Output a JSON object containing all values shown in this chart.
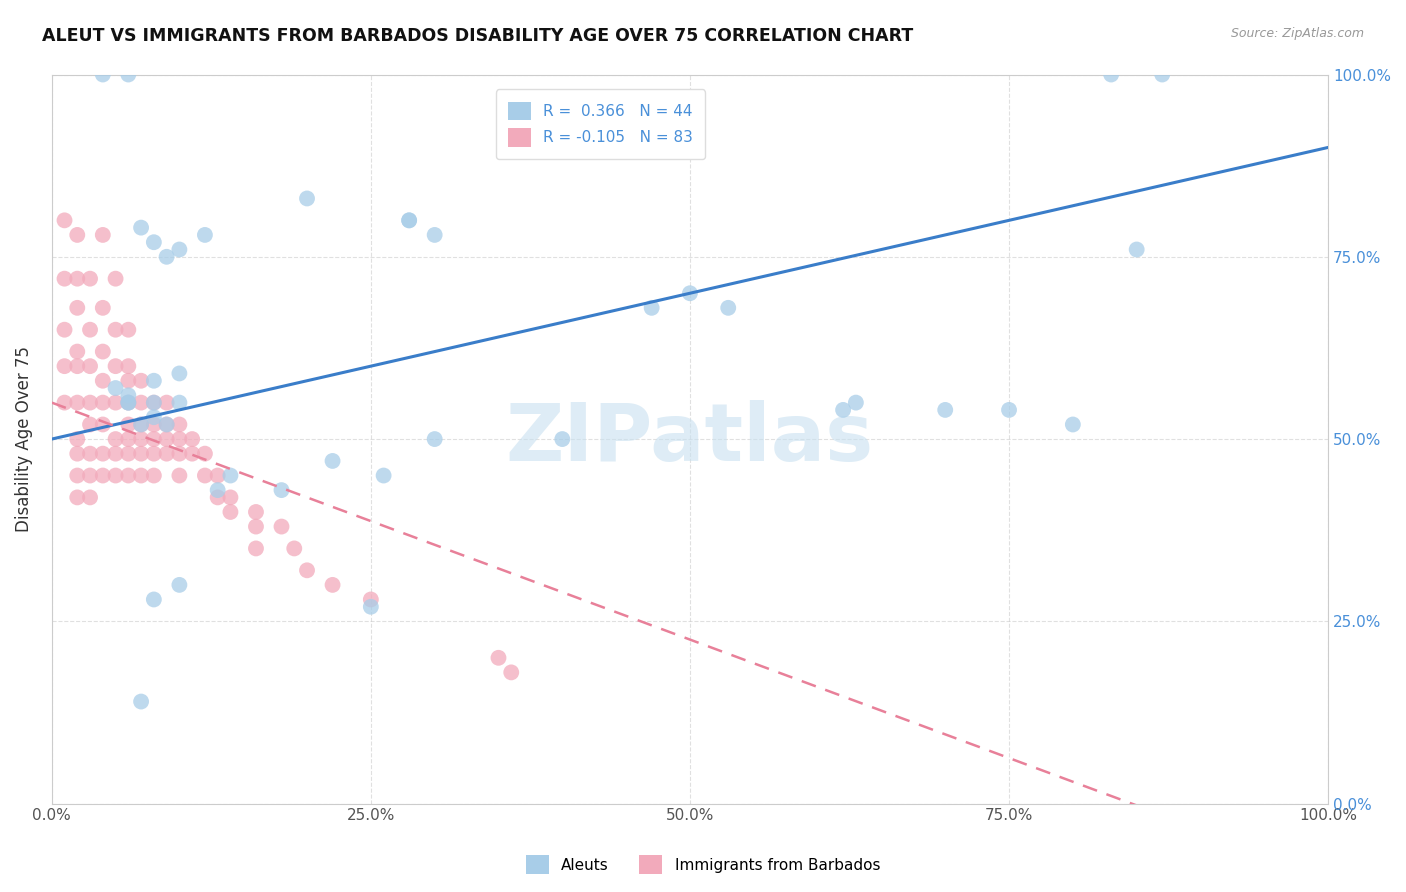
{
  "title": "ALEUT VS IMMIGRANTS FROM BARBADOS DISABILITY AGE OVER 75 CORRELATION CHART",
  "source": "Source: ZipAtlas.com",
  "ylabel": "Disability Age Over 75",
  "legend_labels": [
    "Aleuts",
    "Immigrants from Barbados"
  ],
  "R_aleut": 0.366,
  "N_aleut": 44,
  "R_barbados": -0.105,
  "N_barbados": 83,
  "aleut_color": "#A8CDE8",
  "barbados_color": "#F2AABB",
  "trendline_aleut_color": "#3A7DC9",
  "trendline_barbados_color": "#E88099",
  "background_color": "#FFFFFF",
  "watermark_text": "ZIPatlas",
  "watermark_color": "#C8E0F0",
  "xlim": [
    0.0,
    1.0
  ],
  "ylim": [
    0.0,
    1.0
  ],
  "xticks": [
    0.0,
    0.25,
    0.5,
    0.75,
    1.0
  ],
  "yticks": [
    0.0,
    0.25,
    0.5,
    0.75,
    1.0
  ],
  "xticklabels": [
    "0.0%",
    "25.0%",
    "50.0%",
    "75.0%",
    "100.0%"
  ],
  "yticklabels_right": [
    "0.0%",
    "25.0%",
    "50.0%",
    "75.0%",
    "100.0%"
  ],
  "tick_color": "#4A90D9",
  "grid_color": "#CCCCCC",
  "aleut_x": [
    0.2,
    0.28,
    0.04,
    0.06,
    0.08,
    0.1,
    0.12,
    0.07,
    0.09,
    0.06,
    0.08,
    0.1,
    0.28,
    0.3,
    0.47,
    0.5,
    0.63,
    0.75,
    0.8,
    0.83,
    0.85,
    0.87,
    0.62,
    0.7,
    0.53,
    0.4,
    0.3,
    0.22,
    0.14,
    0.07,
    0.06,
    0.08,
    0.09,
    0.25,
    0.26,
    0.18,
    0.13,
    0.1,
    0.08,
    0.07,
    0.06,
    0.05,
    0.08,
    0.1
  ],
  "aleut_y": [
    0.83,
    0.8,
    1.0,
    1.0,
    0.77,
    0.76,
    0.78,
    0.79,
    0.75,
    0.55,
    0.55,
    0.55,
    0.8,
    0.78,
    0.68,
    0.7,
    0.55,
    0.54,
    0.52,
    1.0,
    0.76,
    1.0,
    0.54,
    0.54,
    0.68,
    0.5,
    0.5,
    0.47,
    0.45,
    0.52,
    0.55,
    0.53,
    0.52,
    0.27,
    0.45,
    0.43,
    0.43,
    0.3,
    0.28,
    0.14,
    0.56,
    0.57,
    0.58,
    0.59
  ],
  "barbados_x": [
    0.01,
    0.01,
    0.01,
    0.01,
    0.01,
    0.02,
    0.02,
    0.02,
    0.02,
    0.02,
    0.02,
    0.02,
    0.02,
    0.02,
    0.02,
    0.03,
    0.03,
    0.03,
    0.03,
    0.03,
    0.03,
    0.03,
    0.03,
    0.04,
    0.04,
    0.04,
    0.04,
    0.04,
    0.04,
    0.04,
    0.05,
    0.05,
    0.05,
    0.05,
    0.05,
    0.05,
    0.06,
    0.06,
    0.06,
    0.06,
    0.06,
    0.06,
    0.06,
    0.07,
    0.07,
    0.07,
    0.07,
    0.07,
    0.07,
    0.08,
    0.08,
    0.08,
    0.08,
    0.08,
    0.09,
    0.09,
    0.09,
    0.09,
    0.1,
    0.1,
    0.1,
    0.1,
    0.11,
    0.11,
    0.12,
    0.12,
    0.13,
    0.13,
    0.14,
    0.14,
    0.16,
    0.16,
    0.16,
    0.18,
    0.19,
    0.2,
    0.22,
    0.25,
    0.35,
    0.36,
    0.04,
    0.05,
    0.06
  ],
  "barbados_y": [
    0.8,
    0.72,
    0.65,
    0.6,
    0.55,
    0.78,
    0.72,
    0.68,
    0.62,
    0.6,
    0.55,
    0.5,
    0.48,
    0.45,
    0.42,
    0.72,
    0.65,
    0.6,
    0.55,
    0.52,
    0.48,
    0.45,
    0.42,
    0.68,
    0.62,
    0.58,
    0.55,
    0.52,
    0.48,
    0.45,
    0.65,
    0.6,
    0.55,
    0.5,
    0.48,
    0.45,
    0.6,
    0.58,
    0.55,
    0.52,
    0.5,
    0.48,
    0.45,
    0.58,
    0.55,
    0.52,
    0.5,
    0.48,
    0.45,
    0.55,
    0.52,
    0.5,
    0.48,
    0.45,
    0.55,
    0.52,
    0.5,
    0.48,
    0.52,
    0.5,
    0.48,
    0.45,
    0.5,
    0.48,
    0.48,
    0.45,
    0.45,
    0.42,
    0.42,
    0.4,
    0.4,
    0.38,
    0.35,
    0.38,
    0.35,
    0.32,
    0.3,
    0.28,
    0.2,
    0.18,
    0.78,
    0.72,
    0.65
  ]
}
